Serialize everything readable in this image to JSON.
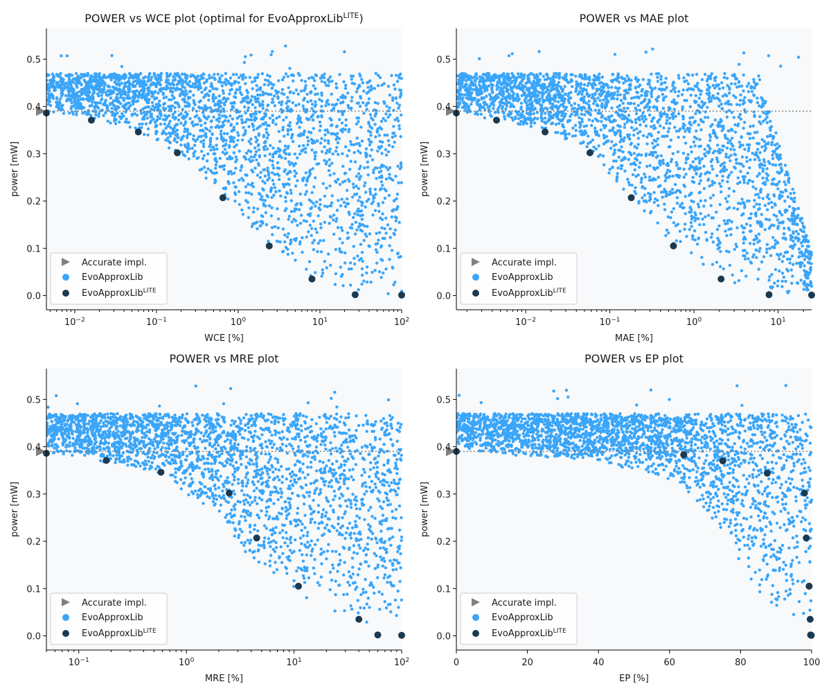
{
  "colors": {
    "accurate": "#808080",
    "evo": "#3aa5f9",
    "lite": "#1b3a50",
    "plot_bg": "#f7f9fb",
    "hline": "#808080"
  },
  "legend": {
    "accurate": "Accurate impl.",
    "evo": "EvoApproxLib",
    "lite_base": "EvoApproxLib",
    "lite_sup": "LITE"
  },
  "chart_data": [
    {
      "type": "scatter",
      "title": "POWER vs WCE plot (optimal for EvoApproxLib",
      "title_sup": "LITE",
      "title_end": ")",
      "xlabel": "WCE [%]",
      "ylabel": "power [mW]",
      "xscale": "log",
      "xlim": [
        0.0045,
        100
      ],
      "ylim": [
        -0.03,
        0.565
      ],
      "xticks": [
        {
          "v": 0.01,
          "b": "10",
          "e": "−2"
        },
        {
          "v": 0.1,
          "b": "10",
          "e": "−1"
        },
        {
          "v": 1,
          "b": "10",
          "e": "0"
        },
        {
          "v": 10,
          "b": "10",
          "e": "1"
        },
        {
          "v": 100,
          "b": "10",
          "e": "2"
        }
      ],
      "yticks": [
        "0.0",
        "0.1",
        "0.2",
        "0.3",
        "0.4",
        "0.5"
      ],
      "accurate_power": 0.39,
      "lite_points": [
        [
          0.0045,
          0.386
        ],
        [
          0.016,
          0.371
        ],
        [
          0.06,
          0.346
        ],
        [
          0.18,
          0.302
        ],
        [
          0.65,
          0.207
        ],
        [
          2.4,
          0.105
        ],
        [
          8,
          0.035
        ],
        [
          27,
          0.002
        ],
        [
          100,
          0.001
        ]
      ],
      "evo_frontier": [
        [
          0.0045,
          0.386
        ],
        [
          0.016,
          0.371
        ],
        [
          0.06,
          0.346
        ],
        [
          0.18,
          0.302
        ],
        [
          0.65,
          0.207
        ],
        [
          2.4,
          0.105
        ],
        [
          8,
          0.035
        ],
        [
          20,
          0.005
        ],
        [
          100,
          0.0
        ]
      ],
      "legend_position": "lower-left"
    },
    {
      "type": "scatter",
      "title": "POWER vs MAE plot",
      "xlabel": "MAE [%]",
      "ylabel": "power [mW]",
      "xscale": "log",
      "xlim": [
        0.0015,
        25
      ],
      "ylim": [
        -0.03,
        0.565
      ],
      "xticks": [
        {
          "v": 0.01,
          "b": "10",
          "e": "−2"
        },
        {
          "v": 0.1,
          "b": "10",
          "e": "−1"
        },
        {
          "v": 1,
          "b": "10",
          "e": "0"
        },
        {
          "v": 10,
          "b": "10",
          "e": "1"
        }
      ],
      "yticks": [
        "0.0",
        "0.1",
        "0.2",
        "0.3",
        "0.4",
        "0.5"
      ],
      "accurate_power": 0.39,
      "lite_points": [
        [
          0.0015,
          0.386
        ],
        [
          0.0045,
          0.371
        ],
        [
          0.017,
          0.346
        ],
        [
          0.058,
          0.302
        ],
        [
          0.18,
          0.207
        ],
        [
          0.57,
          0.105
        ],
        [
          2.1,
          0.035
        ],
        [
          7.8,
          0.002
        ],
        [
          25,
          0.001
        ]
      ],
      "evo_frontier": [
        [
          0.0015,
          0.386
        ],
        [
          0.0045,
          0.371
        ],
        [
          0.017,
          0.346
        ],
        [
          0.058,
          0.302
        ],
        [
          0.18,
          0.207
        ],
        [
          0.57,
          0.105
        ],
        [
          2.1,
          0.035
        ],
        [
          7.8,
          0.002
        ],
        [
          25,
          0.0
        ]
      ],
      "legend_position": "lower-left"
    },
    {
      "type": "scatter",
      "title": "POWER vs MRE plot",
      "xlabel": "MRE [%]",
      "ylabel": "power [mW]",
      "xscale": "log",
      "xlim": [
        0.05,
        100
      ],
      "ylim": [
        -0.03,
        0.565
      ],
      "xticks": [
        {
          "v": 0.1,
          "b": "10",
          "e": "−1"
        },
        {
          "v": 1,
          "b": "10",
          "e": "0"
        },
        {
          "v": 10,
          "b": "10",
          "e": "1"
        },
        {
          "v": 100,
          "b": "10",
          "e": "2"
        }
      ],
      "yticks": [
        "0.0",
        "0.1",
        "0.2",
        "0.3",
        "0.4",
        "0.5"
      ],
      "accurate_power": 0.39,
      "lite_points": [
        [
          0.05,
          0.386
        ],
        [
          0.18,
          0.371
        ],
        [
          0.58,
          0.346
        ],
        [
          2.5,
          0.302
        ],
        [
          4.5,
          0.207
        ],
        [
          11,
          0.105
        ],
        [
          40,
          0.035
        ],
        [
          60,
          0.002
        ],
        [
          100,
          0.001
        ]
      ],
      "evo_frontier": [
        [
          0.05,
          0.386
        ],
        [
          0.18,
          0.365
        ],
        [
          0.58,
          0.34
        ],
        [
          2.0,
          0.25
        ],
        [
          3.5,
          0.17
        ],
        [
          5,
          0.145
        ],
        [
          11,
          0.09
        ],
        [
          30,
          0.03
        ],
        [
          100,
          0.0
        ]
      ],
      "legend_position": "lower-left"
    },
    {
      "type": "scatter",
      "title": "POWER vs EP plot",
      "xlabel": "EP [%]",
      "ylabel": "power [mW]",
      "xscale": "linear",
      "xlim": [
        0,
        100
      ],
      "ylim": [
        -0.03,
        0.565
      ],
      "xticks": [
        {
          "v": 0,
          "b": "0"
        },
        {
          "v": 20,
          "b": "20"
        },
        {
          "v": 40,
          "b": "40"
        },
        {
          "v": 60,
          "b": "60"
        },
        {
          "v": 80,
          "b": "80"
        },
        {
          "v": 100,
          "b": "100"
        }
      ],
      "yticks": [
        "0.0",
        "0.1",
        "0.2",
        "0.3",
        "0.4",
        "0.5"
      ],
      "accurate_power": 0.39,
      "lite_points": [
        [
          0,
          0.39
        ],
        [
          64,
          0.383
        ],
        [
          75,
          0.37
        ],
        [
          87.5,
          0.344
        ],
        [
          98,
          0.302
        ],
        [
          98.5,
          0.207
        ],
        [
          99.3,
          0.105
        ],
        [
          99.6,
          0.035
        ],
        [
          99.7,
          0.002
        ],
        [
          99.9,
          0.001
        ]
      ],
      "evo_frontier": [
        [
          0,
          0.39
        ],
        [
          40,
          0.37
        ],
        [
          60,
          0.33
        ],
        [
          75,
          0.22
        ],
        [
          85,
          0.09
        ],
        [
          95,
          0.03
        ],
        [
          100,
          0.0
        ]
      ],
      "legend_position": "lower-left"
    }
  ]
}
